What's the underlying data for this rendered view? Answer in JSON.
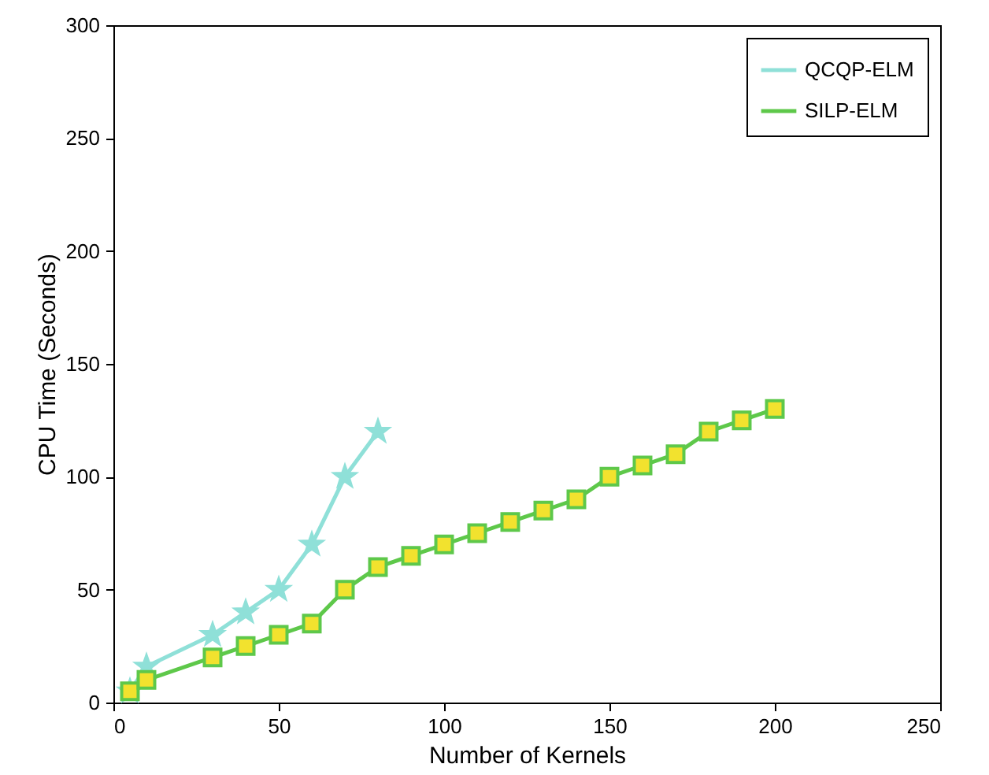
{
  "chart_data": {
    "type": "line",
    "xlabel": "Number of Kernels",
    "ylabel": "CPU Time (Seconds)",
    "xlim": [
      0,
      250
    ],
    "xticks": [
      0,
      50,
      100,
      150,
      200,
      250
    ],
    "ylim": [
      0,
      300
    ],
    "yticks": [
      0,
      50,
      100,
      150,
      200,
      250,
      300
    ],
    "grid": false,
    "legend": "top right",
    "series": [
      {
        "name": "QCQP-ELM",
        "color": "#8fe0d8",
        "marker": "star",
        "x": [
          5,
          10,
          30,
          40,
          50,
          60,
          70,
          80
        ],
        "values": [
          5,
          16,
          30,
          40,
          50,
          70,
          100,
          120
        ]
      },
      {
        "name": "SILP-ELM",
        "color": "#5ec84a",
        "marker": "square",
        "x": [
          5,
          10,
          30,
          40,
          50,
          60,
          70,
          80,
          90,
          100,
          110,
          120,
          130,
          140,
          150,
          160,
          170,
          180,
          190,
          200
        ],
        "values": [
          5,
          10,
          20,
          25,
          30,
          35,
          50,
          60,
          65,
          70,
          75,
          80,
          85,
          90,
          100,
          105,
          110,
          120,
          125,
          130
        ]
      }
    ]
  }
}
